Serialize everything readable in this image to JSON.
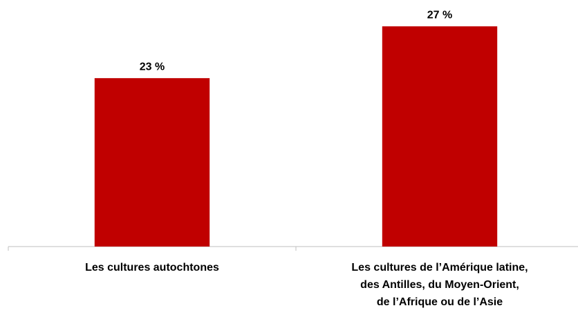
{
  "chart_data": {
    "type": "bar",
    "categories": [
      "Les cultures autochtones",
      "Les cultures de l’Amérique latine,\ndes Antilles, du Moyen-Orient,\nde l’Afrique ou de l’Asie"
    ],
    "values": [
      23,
      27
    ],
    "value_labels": [
      "23 %",
      "27 %"
    ],
    "color": "#c00000",
    "ylim": [
      10,
      28.5
    ]
  }
}
